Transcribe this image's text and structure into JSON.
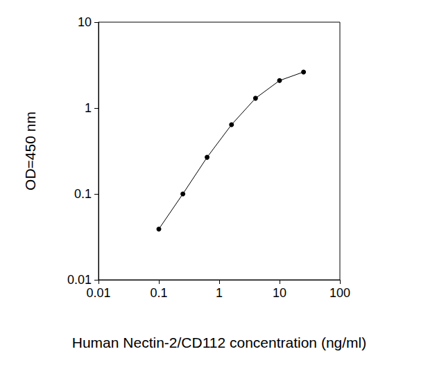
{
  "chart_data": {
    "type": "line",
    "x_label": "Human Nectin-2/CD112 concentration (ng/ml)",
    "y_label": "OD=450 nm",
    "x": [
      0.1,
      0.25,
      0.63,
      1.6,
      4,
      10,
      25
    ],
    "series": [
      {
        "color": "#000000",
        "marker": "circle",
        "line_style": "solid",
        "values": [
          0.039,
          0.1,
          0.267,
          0.64,
          1.3,
          2.09,
          2.63
        ]
      }
    ],
    "xlim": [
      0.01,
      100
    ],
    "xticks": [
      0.01,
      0.1,
      1,
      10,
      100
    ],
    "ylim": [
      0.01,
      10
    ],
    "yticks": [
      0.01,
      0.1,
      1,
      10
    ],
    "log": true,
    "grid": false
  }
}
